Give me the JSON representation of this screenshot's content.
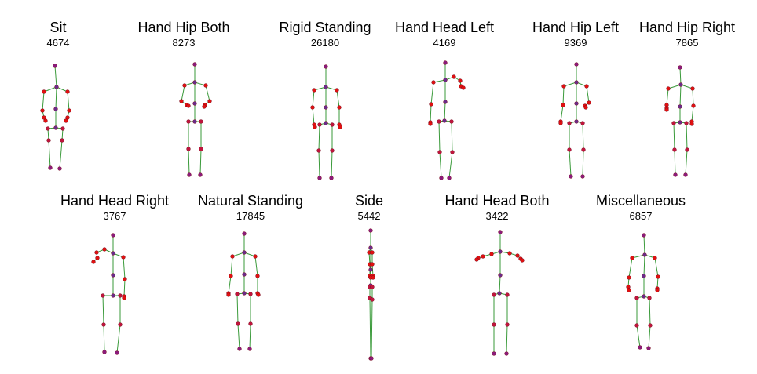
{
  "colors": {
    "bone": "#3a9a3a",
    "joint_outline": "#7a0a1e",
    "joint_fill_scale": [
      "#e01010",
      "#c0143c",
      "#8b1a7c",
      "#6a2a8a"
    ]
  },
  "poses": [
    {
      "name": "Sit",
      "count": "4674"
    },
    {
      "name": "Hand Hip Both",
      "count": "8273"
    },
    {
      "name": "Rigid Standing",
      "count": "26180"
    },
    {
      "name": "Hand Head Left",
      "count": "4169"
    },
    {
      "name": "Hand Hip Left",
      "count": "9369"
    },
    {
      "name": "Hand Hip Right",
      "count": "7865"
    },
    {
      "name": "Hand Head Right",
      "count": "3767"
    },
    {
      "name": "Natural Standing",
      "count": "17845"
    },
    {
      "name": "Side",
      "count": "5442"
    },
    {
      "name": "Hand Head Both",
      "count": "3422"
    },
    {
      "name": "Miscellaneous",
      "count": "6857"
    }
  ]
}
